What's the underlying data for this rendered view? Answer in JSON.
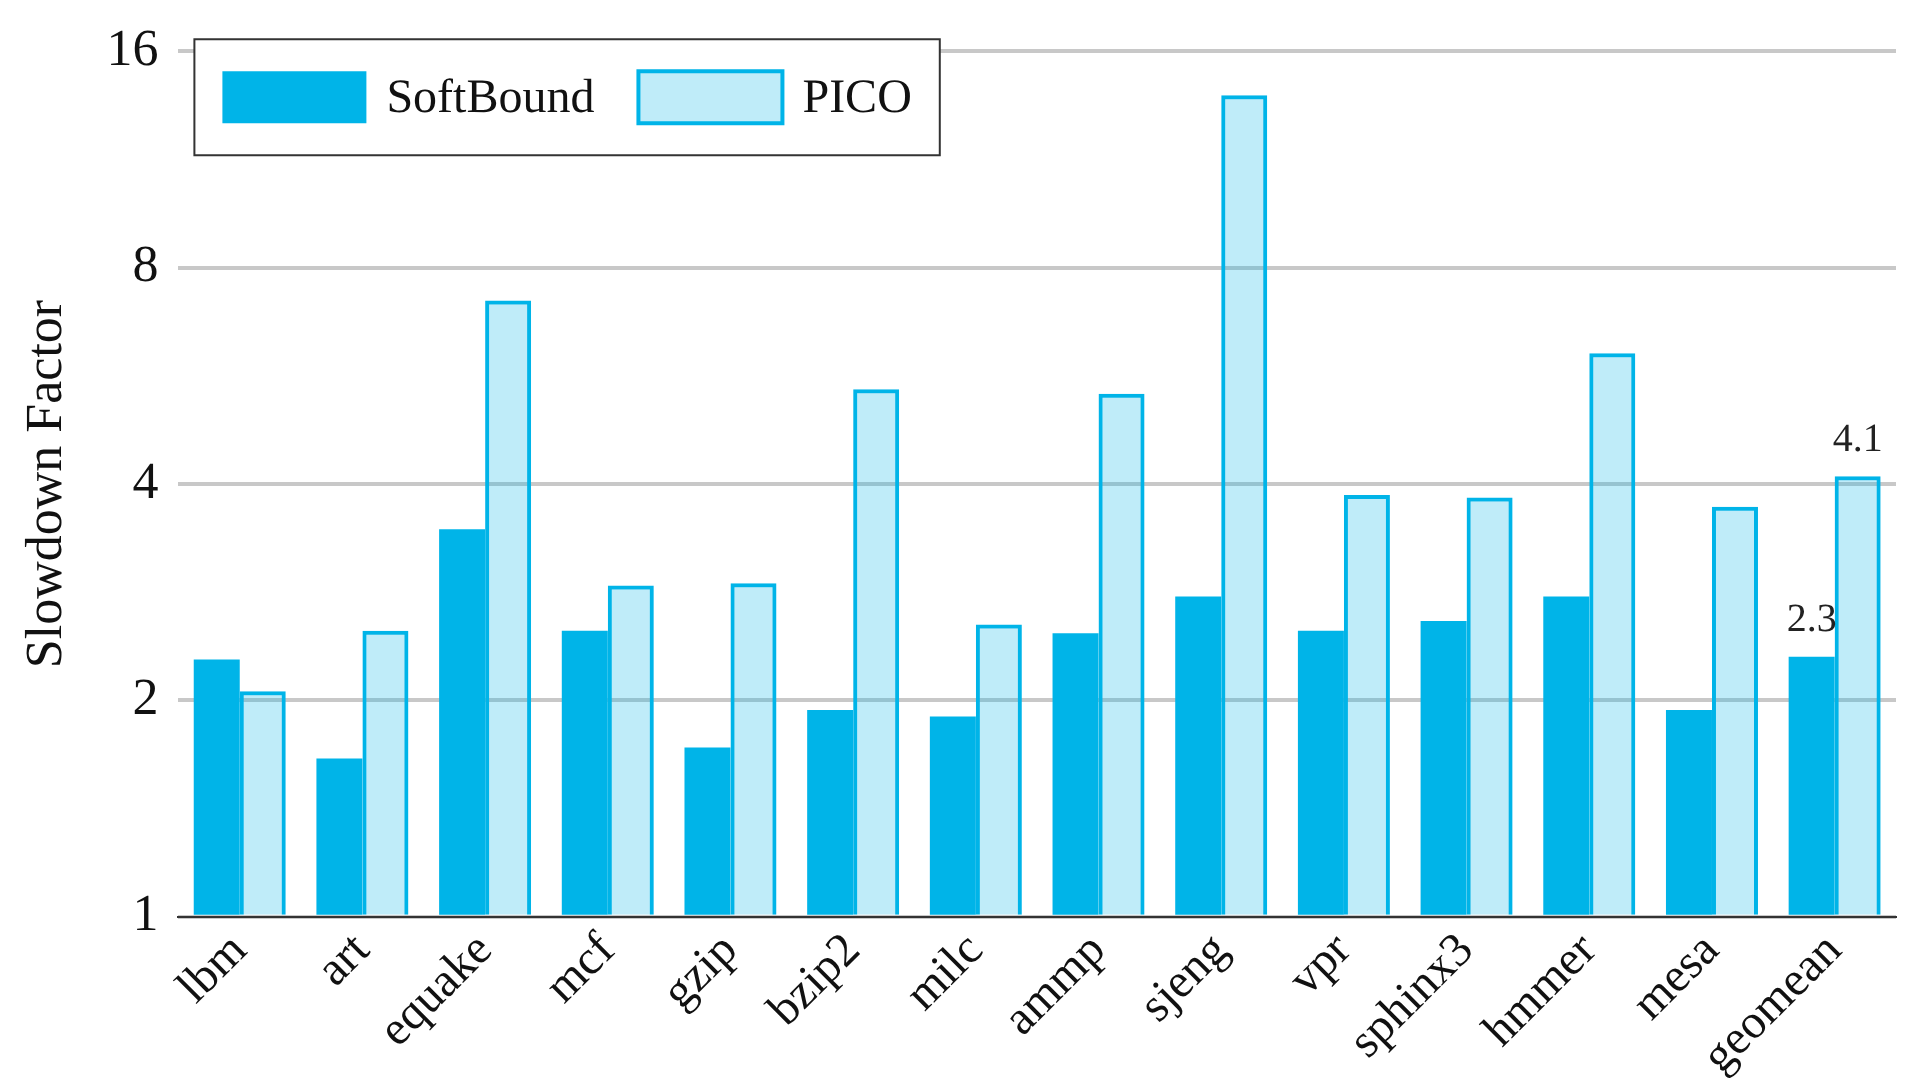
{
  "chart_data": {
    "type": "bar",
    "ylabel": "Slowdown Factor",
    "log": true,
    "ylim": [
      1,
      16
    ],
    "yticks": [
      1,
      2,
      4,
      8,
      16
    ],
    "grid": "y",
    "legend": "top left",
    "categories": [
      "lbm",
      "art",
      "equake",
      "mcf",
      "gzip",
      "bzip2",
      "milc",
      "ammp",
      "sjeng",
      "vpr",
      "sphinx3",
      "hmmer",
      "mesa",
      "geomean"
    ],
    "series": [
      {
        "name": "SoftBound",
        "color": "#00b4e8",
        "values": [
          2.28,
          1.66,
          3.46,
          2.5,
          1.72,
          1.94,
          1.9,
          2.48,
          2.79,
          2.5,
          2.58,
          2.79,
          1.94,
          2.3
        ],
        "value_labels": [
          null,
          null,
          null,
          null,
          null,
          null,
          null,
          null,
          null,
          null,
          null,
          null,
          null,
          "2.3"
        ]
      },
      {
        "name": "PICO",
        "color": "#00b4e8",
        "values": [
          2.06,
          2.5,
          7.2,
          2.89,
          2.91,
          5.42,
          2.55,
          5.34,
          13.9,
          3.86,
          3.83,
          6.08,
          3.72,
          4.1
        ],
        "value_labels": [
          null,
          null,
          null,
          null,
          null,
          null,
          null,
          null,
          null,
          null,
          null,
          null,
          null,
          "4.1"
        ]
      }
    ]
  }
}
